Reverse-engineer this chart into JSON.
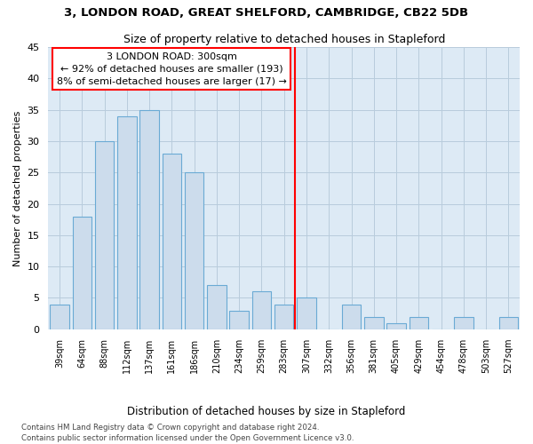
{
  "title1": "3, LONDON ROAD, GREAT SHELFORD, CAMBRIDGE, CB22 5DB",
  "title2": "Size of property relative to detached houses in Stapleford",
  "xlabel": "Distribution of detached houses by size in Stapleford",
  "ylabel": "Number of detached properties",
  "categories": [
    "39sqm",
    "64sqm",
    "88sqm",
    "112sqm",
    "137sqm",
    "161sqm",
    "186sqm",
    "210sqm",
    "234sqm",
    "259sqm",
    "283sqm",
    "307sqm",
    "332sqm",
    "356sqm",
    "381sqm",
    "405sqm",
    "429sqm",
    "454sqm",
    "478sqm",
    "503sqm",
    "527sqm"
  ],
  "values": [
    4,
    18,
    30,
    34,
    35,
    28,
    25,
    7,
    3,
    6,
    4,
    5,
    0,
    4,
    2,
    1,
    2,
    0,
    2,
    0,
    2
  ],
  "bar_color": "#ccdcec",
  "bar_edge_color": "#6aaad4",
  "red_line_index": 11,
  "annotation_text": "3 LONDON ROAD: 300sqm\n← 92% of detached houses are smaller (193)\n8% of semi-detached houses are larger (17) →",
  "ylim": [
    0,
    45
  ],
  "yticks": [
    0,
    5,
    10,
    15,
    20,
    25,
    30,
    35,
    40,
    45
  ],
  "grid_color": "#b8ccdc",
  "background_color": "#ddeaf5",
  "footer1": "Contains HM Land Registry data © Crown copyright and database right 2024.",
  "footer2": "Contains public sector information licensed under the Open Government Licence v3.0."
}
